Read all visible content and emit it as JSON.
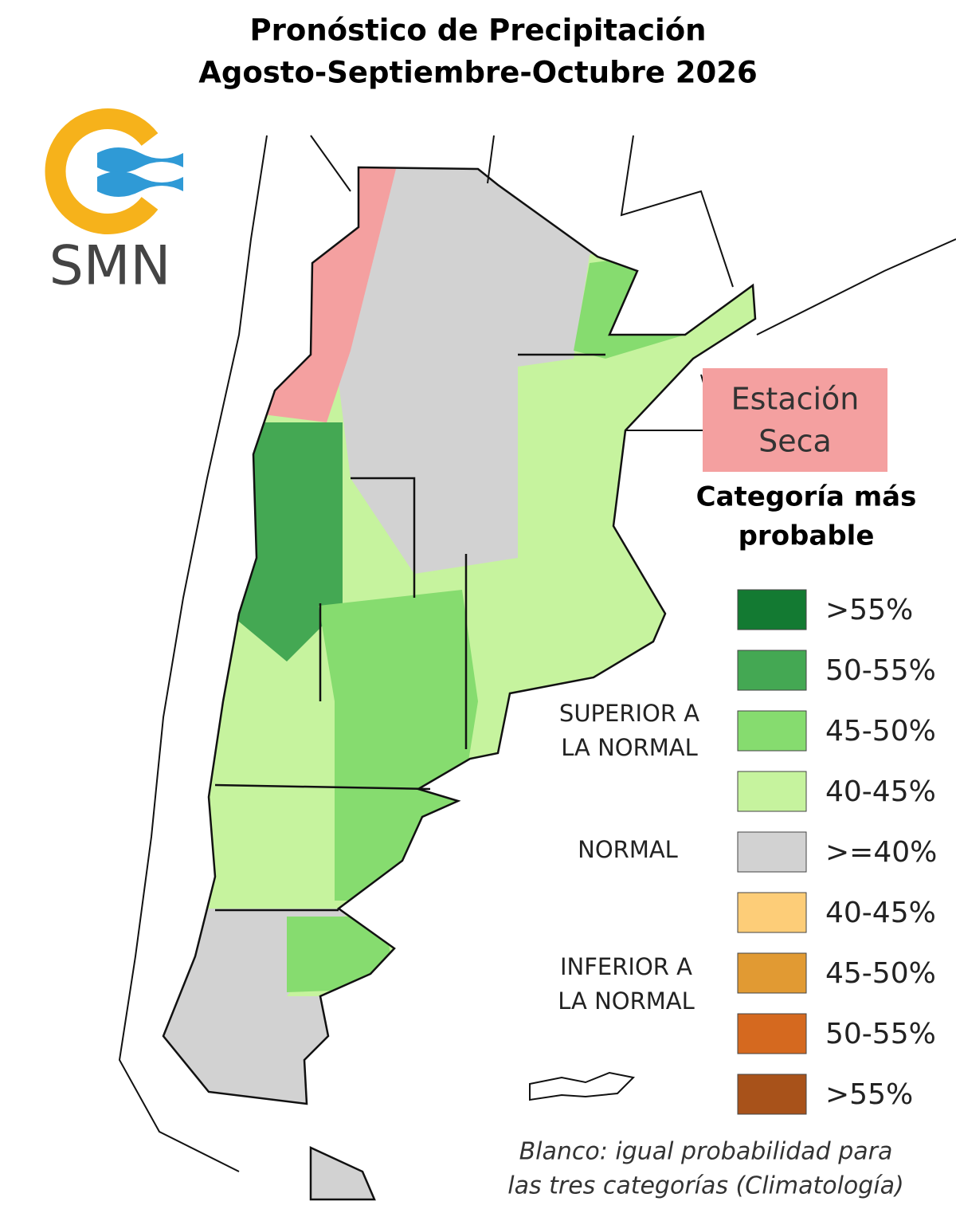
{
  "header": {
    "title_line1": "Pronóstico de Precipitación",
    "title_line2": "Agosto-Septiembre-Octubre 2026"
  },
  "logo": {
    "text": "SMN"
  },
  "dry_season": {
    "label_line1": "Estación",
    "label_line2": "Seca"
  },
  "legend": {
    "title_line1": "Categoría más",
    "title_line2": "probable",
    "groups": [
      {
        "lines": [
          "SUPERIOR A",
          "LA NORMAL"
        ]
      },
      {
        "lines": [
          "NORMAL"
        ]
      },
      {
        "lines": [
          "INFERIOR A",
          "LA NORMAL"
        ]
      }
    ],
    "items": [
      {
        "label": ">55%",
        "color": "#137a32"
      },
      {
        "label": "50-55%",
        "color": "#44a853"
      },
      {
        "label": "45-50%",
        "color": "#86dc6f"
      },
      {
        "label": "40-45%",
        "color": "#c6f39e"
      },
      {
        "label": ">=40%",
        "color": "#d2d2d2"
      },
      {
        "label": "40-45%",
        "color": "#fdcd78"
      },
      {
        "label": "45-50%",
        "color": "#e19a33"
      },
      {
        "label": "50-55%",
        "color": "#d5691f"
      },
      {
        "label": ">55%",
        "color": "#a8521a"
      }
    ]
  },
  "footnote": {
    "line1": "Blanco: igual probabilidad para",
    "line2": "las tres categorías (Climatología)"
  }
}
